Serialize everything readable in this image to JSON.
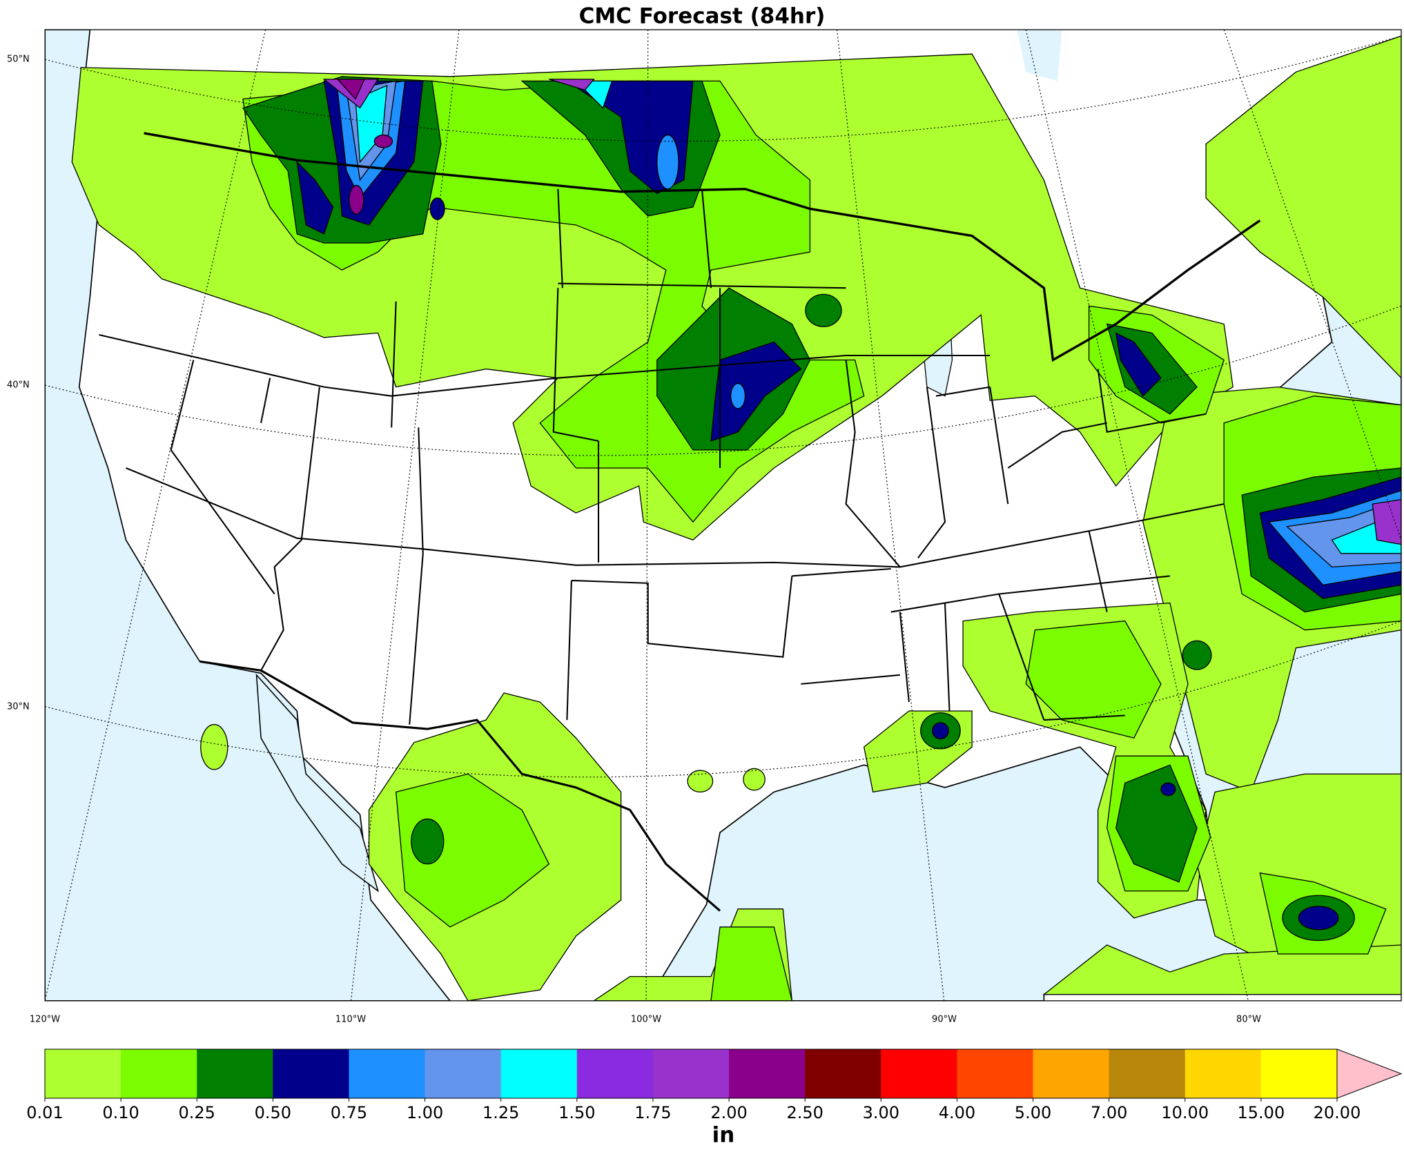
{
  "map": {
    "title": "CMC Forecast (84hr)",
    "lat_labels": [
      "50°N",
      "40°N",
      "30°N"
    ],
    "lon_labels": [
      "120°W",
      "110°W",
      "100°W",
      "90°W",
      "80°W"
    ],
    "colorbar": {
      "levels": [
        {
          "value": 0.01,
          "label": "0.01"
        },
        {
          "value": 0.1,
          "label": "0.10"
        },
        {
          "value": 0.25,
          "label": "0.25"
        },
        {
          "value": 0.5,
          "label": "0.50"
        },
        {
          "value": 0.75,
          "label": "0.75"
        },
        {
          "value": 1,
          "label": "1.00"
        },
        {
          "value": 1.25,
          "label": "1.25"
        },
        {
          "value": 1.5,
          "label": "1.50"
        },
        {
          "value": 1.75,
          "label": "1.75"
        },
        {
          "value": 2,
          "label": "2.00"
        },
        {
          "value": 2.5,
          "label": "2.50"
        },
        {
          "value": 3,
          "label": "3.00"
        },
        {
          "value": 4,
          "label": "4.00"
        },
        {
          "value": 5,
          "label": "5.00"
        },
        {
          "value": 7,
          "label": "7.00"
        },
        {
          "value": 10,
          "label": "10.00"
        },
        {
          "value": 15,
          "label": "15.00"
        },
        {
          "value": 20,
          "label": "20.00"
        }
      ],
      "colors": [
        "#adff2f",
        "#7cfc00",
        "#007f00",
        "#00008b",
        "#1e90ff",
        "#6495ed",
        "#00ffff",
        "#8a2be2",
        "#9932cc",
        "#8b008b",
        "#800000",
        "#ff0000",
        "#ff4500",
        "#ffa500",
        "#b8860b",
        "#ffd700",
        "#ffff00"
      ],
      "extend_color": "#ffc0cb",
      "unit": "in"
    }
  }
}
